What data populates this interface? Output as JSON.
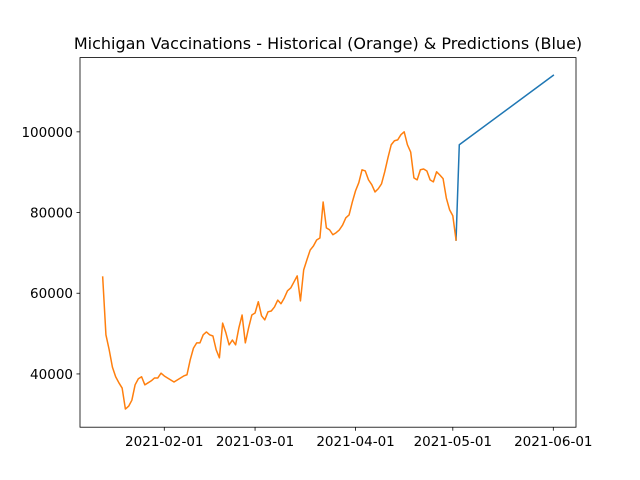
{
  "chart_data": {
    "type": "line",
    "title": "Michigan Vaccinations - Historical (Orange) & Predictions (Blue)",
    "xlim": [
      "2021-01-06",
      "2021-06-08"
    ],
    "xticks": [
      "2021-02-01",
      "2021-03-01",
      "2021-04-01",
      "2021-05-01",
      "2021-06-01"
    ],
    "ylim": [
      26800,
      118400
    ],
    "yticks": [
      40000,
      60000,
      80000,
      100000
    ],
    "grid": false,
    "series": [
      {
        "color": "#1f77b4",
        "x": [
          "2021-05-02",
          "2021-05-03",
          "2021-06-01"
        ],
        "values": [
          73200,
          96800,
          114000
        ]
      },
      {
        "color": "#ff7f0e",
        "x": [
          "2021-01-13",
          "2021-01-14",
          "2021-01-15",
          "2021-01-16",
          "2021-01-17",
          "2021-01-18",
          "2021-01-19",
          "2021-01-20",
          "2021-01-21",
          "2021-01-22",
          "2021-01-23",
          "2021-01-24",
          "2021-01-25",
          "2021-01-26",
          "2021-01-27",
          "2021-01-28",
          "2021-01-29",
          "2021-01-30",
          "2021-01-31",
          "2021-02-01",
          "2021-02-02",
          "2021-02-03",
          "2021-02-04",
          "2021-02-05",
          "2021-02-06",
          "2021-02-07",
          "2021-02-08",
          "2021-02-09",
          "2021-02-10",
          "2021-02-11",
          "2021-02-12",
          "2021-02-13",
          "2021-02-14",
          "2021-02-15",
          "2021-02-16",
          "2021-02-17",
          "2021-02-18",
          "2021-02-19",
          "2021-02-20",
          "2021-02-21",
          "2021-02-22",
          "2021-02-23",
          "2021-02-24",
          "2021-02-25",
          "2021-02-26",
          "2021-02-27",
          "2021-02-28",
          "2021-03-01",
          "2021-03-02",
          "2021-03-03",
          "2021-03-04",
          "2021-03-05",
          "2021-03-06",
          "2021-03-07",
          "2021-03-08",
          "2021-03-09",
          "2021-03-10",
          "2021-03-11",
          "2021-03-12",
          "2021-03-13",
          "2021-03-14",
          "2021-03-15",
          "2021-03-16",
          "2021-03-17",
          "2021-03-18",
          "2021-03-19",
          "2021-03-20",
          "2021-03-21",
          "2021-03-22",
          "2021-03-23",
          "2021-03-24",
          "2021-03-25",
          "2021-03-26",
          "2021-03-27",
          "2021-03-28",
          "2021-03-29",
          "2021-03-30",
          "2021-03-31",
          "2021-04-01",
          "2021-04-02",
          "2021-04-03",
          "2021-04-04",
          "2021-04-05",
          "2021-04-06",
          "2021-04-07",
          "2021-04-08",
          "2021-04-09",
          "2021-04-10",
          "2021-04-11",
          "2021-04-12",
          "2021-04-13",
          "2021-04-14",
          "2021-04-15",
          "2021-04-16",
          "2021-04-17",
          "2021-04-18",
          "2021-04-19",
          "2021-04-20",
          "2021-04-21",
          "2021-04-22",
          "2021-04-23",
          "2021-04-24",
          "2021-04-25",
          "2021-04-26",
          "2021-04-27",
          "2021-04-28",
          "2021-04-29",
          "2021-04-30",
          "2021-05-01",
          "2021-05-02"
        ],
        "values": [
          64000,
          49700,
          46000,
          41700,
          39300,
          37800,
          36500,
          31300,
          32000,
          33500,
          37300,
          38800,
          39300,
          37300,
          37800,
          38300,
          39000,
          39000,
          40200,
          39500,
          39000,
          38500,
          38000,
          38500,
          39000,
          39500,
          39800,
          43500,
          46400,
          47700,
          47700,
          49700,
          50400,
          49700,
          49400,
          46000,
          44000,
          52600,
          50200,
          47200,
          48400,
          47200,
          51400,
          54600,
          47700,
          51400,
          54600,
          55100,
          57900,
          54400,
          53400,
          55400,
          55600,
          56600,
          58300,
          57400,
          58800,
          60600,
          61300,
          62800,
          64300,
          58100,
          65800,
          68300,
          70700,
          71700,
          73200,
          73700,
          82600,
          76200,
          75700,
          74500,
          75000,
          75700,
          76900,
          78700,
          79400,
          82600,
          85400,
          87400,
          90600,
          90300,
          88100,
          86900,
          85100,
          85900,
          87100,
          90100,
          93600,
          96800,
          97800,
          98000,
          99300,
          100000,
          96800,
          95000,
          88600,
          88100,
          90600,
          90800,
          90300,
          88100,
          87600,
          90100,
          89300,
          88400,
          83600,
          80700,
          79200,
          73200
        ]
      }
    ]
  }
}
